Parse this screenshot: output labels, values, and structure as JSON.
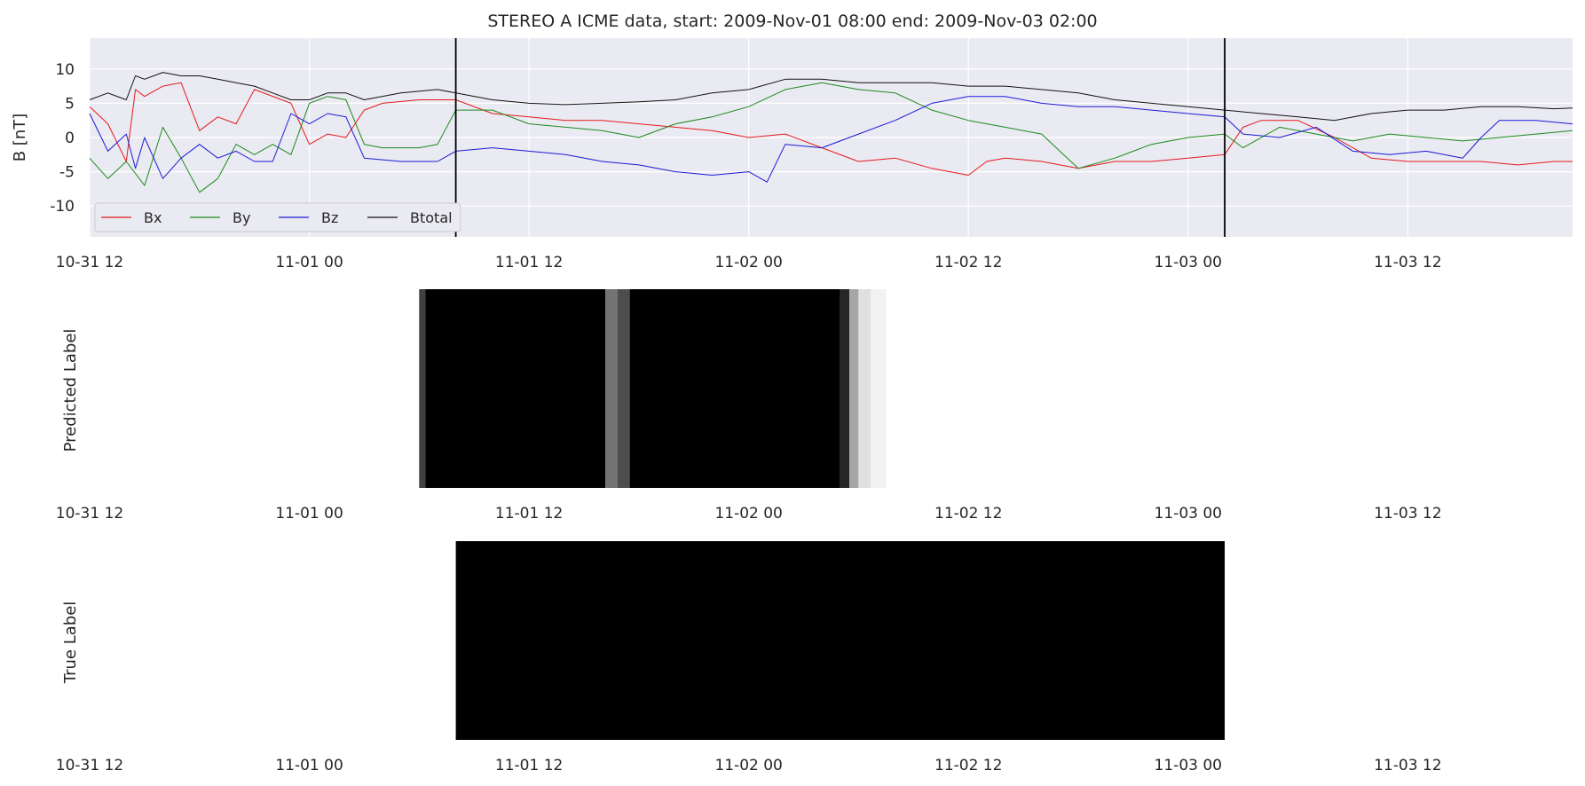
{
  "chart_data": [
    {
      "type": "line",
      "title": "STEREO A ICME data, start: 2009-Nov-01 08:00  end: 2009-Nov-03 02:00",
      "ylabel": "B [nT]",
      "xlabel": "",
      "x_range": [
        "2009-10-31 12:00",
        "2009-11-03 21:00"
      ],
      "ylim": [
        -14.5,
        14.5
      ],
      "y_ticks": [
        -10,
        -5,
        0,
        5,
        10
      ],
      "x_ticks": [
        "10-31 12",
        "11-01 00",
        "11-01 12",
        "11-02 00",
        "11-02 12",
        "11-03 00",
        "11-03 12"
      ],
      "grid": true,
      "legend_position": "lower-left",
      "event_lines": [
        "2009-11-01 08:00",
        "2009-11-03 02:00"
      ],
      "series": [
        {
          "name": "Bx",
          "color": "#e41a1c",
          "points": [
            [
              "2009-10-31 12:00",
              4.5
            ],
            [
              "2009-10-31 13:00",
              2.0
            ],
            [
              "2009-10-31 14:00",
              -3.5
            ],
            [
              "2009-10-31 14:30",
              7.0
            ],
            [
              "2009-10-31 15:00",
              6.0
            ],
            [
              "2009-10-31 16:00",
              7.5
            ],
            [
              "2009-10-31 17:00",
              8.0
            ],
            [
              "2009-10-31 18:00",
              1.0
            ],
            [
              "2009-10-31 19:00",
              3.0
            ],
            [
              "2009-10-31 20:00",
              2.0
            ],
            [
              "2009-10-31 21:00",
              7.0
            ],
            [
              "2009-10-31 23:00",
              5.0
            ],
            [
              "2009-11-01 00:00",
              -1.0
            ],
            [
              "2009-11-01 01:00",
              0.5
            ],
            [
              "2009-11-01 02:00",
              0.0
            ],
            [
              "2009-11-01 03:00",
              4.0
            ],
            [
              "2009-11-01 04:00",
              5.0
            ],
            [
              "2009-11-01 06:00",
              5.5
            ],
            [
              "2009-11-01 08:00",
              5.5
            ],
            [
              "2009-11-01 10:00",
              3.5
            ],
            [
              "2009-11-01 12:00",
              3.0
            ],
            [
              "2009-11-01 14:00",
              2.5
            ],
            [
              "2009-11-01 16:00",
              2.5
            ],
            [
              "2009-11-01 18:00",
              2.0
            ],
            [
              "2009-11-01 20:00",
              1.5
            ],
            [
              "2009-11-01 22:00",
              1.0
            ],
            [
              "2009-11-02 00:00",
              0.0
            ],
            [
              "2009-11-02 02:00",
              0.5
            ],
            [
              "2009-11-02 04:00",
              -1.5
            ],
            [
              "2009-11-02 06:00",
              -3.5
            ],
            [
              "2009-11-02 08:00",
              -3.0
            ],
            [
              "2009-11-02 10:00",
              -4.5
            ],
            [
              "2009-11-02 12:00",
              -5.5
            ],
            [
              "2009-11-02 13:00",
              -3.5
            ],
            [
              "2009-11-02 14:00",
              -3.0
            ],
            [
              "2009-11-02 16:00",
              -3.5
            ],
            [
              "2009-11-02 18:00",
              -4.5
            ],
            [
              "2009-11-02 20:00",
              -3.5
            ],
            [
              "2009-11-02 22:00",
              -3.5
            ],
            [
              "2009-11-03 00:00",
              -3.0
            ],
            [
              "2009-11-03 02:00",
              -2.5
            ],
            [
              "2009-11-03 03:00",
              1.5
            ],
            [
              "2009-11-03 04:00",
              2.5
            ],
            [
              "2009-11-03 06:00",
              2.5
            ],
            [
              "2009-11-03 08:00",
              0.0
            ],
            [
              "2009-11-03 10:00",
              -3.0
            ],
            [
              "2009-11-03 12:00",
              -3.5
            ],
            [
              "2009-11-03 14:00",
              -3.5
            ],
            [
              "2009-11-03 16:00",
              -3.5
            ],
            [
              "2009-11-03 18:00",
              -4.0
            ],
            [
              "2009-11-03 20:00",
              -3.5
            ],
            [
              "2009-11-03 21:00",
              -3.5
            ]
          ]
        },
        {
          "name": "By",
          "color": "#1b8a1b",
          "points": [
            [
              "2009-10-31 12:00",
              -3.0
            ],
            [
              "2009-10-31 13:00",
              -6.0
            ],
            [
              "2009-10-31 14:00",
              -3.5
            ],
            [
              "2009-10-31 15:00",
              -7.0
            ],
            [
              "2009-10-31 16:00",
              1.5
            ],
            [
              "2009-10-31 17:00",
              -3.0
            ],
            [
              "2009-10-31 18:00",
              -8.0
            ],
            [
              "2009-10-31 19:00",
              -6.0
            ],
            [
              "2009-10-31 20:00",
              -1.0
            ],
            [
              "2009-10-31 21:00",
              -2.5
            ],
            [
              "2009-10-31 22:00",
              -1.0
            ],
            [
              "2009-10-31 23:00",
              -2.5
            ],
            [
              "2009-11-01 00:00",
              5.0
            ],
            [
              "2009-11-01 01:00",
              6.0
            ],
            [
              "2009-11-01 02:00",
              5.5
            ],
            [
              "2009-11-01 03:00",
              -1.0
            ],
            [
              "2009-11-01 04:00",
              -1.5
            ],
            [
              "2009-11-01 06:00",
              -1.5
            ],
            [
              "2009-11-01 07:00",
              -1.0
            ],
            [
              "2009-11-01 08:00",
              4.0
            ],
            [
              "2009-11-01 10:00",
              4.0
            ],
            [
              "2009-11-01 12:00",
              2.0
            ],
            [
              "2009-11-01 14:00",
              1.5
            ],
            [
              "2009-11-01 16:00",
              1.0
            ],
            [
              "2009-11-01 18:00",
              0.0
            ],
            [
              "2009-11-01 20:00",
              2.0
            ],
            [
              "2009-11-01 22:00",
              3.0
            ],
            [
              "2009-11-02 00:00",
              4.5
            ],
            [
              "2009-11-02 02:00",
              7.0
            ],
            [
              "2009-11-02 04:00",
              8.0
            ],
            [
              "2009-11-02 06:00",
              7.0
            ],
            [
              "2009-11-02 08:00",
              6.5
            ],
            [
              "2009-11-02 10:00",
              4.0
            ],
            [
              "2009-11-02 12:00",
              2.5
            ],
            [
              "2009-11-02 14:00",
              1.5
            ],
            [
              "2009-11-02 16:00",
              0.5
            ],
            [
              "2009-11-02 18:00",
              -4.5
            ],
            [
              "2009-11-02 20:00",
              -3.0
            ],
            [
              "2009-11-02 22:00",
              -1.0
            ],
            [
              "2009-11-03 00:00",
              0.0
            ],
            [
              "2009-11-03 02:00",
              0.5
            ],
            [
              "2009-11-03 03:00",
              -1.5
            ],
            [
              "2009-11-03 05:00",
              1.5
            ],
            [
              "2009-11-03 07:00",
              0.5
            ],
            [
              "2009-11-03 09:00",
              -0.5
            ],
            [
              "2009-11-03 11:00",
              0.5
            ],
            [
              "2009-11-03 13:00",
              0.0
            ],
            [
              "2009-11-03 15:00",
              -0.5
            ],
            [
              "2009-11-03 17:00",
              0.0
            ],
            [
              "2009-11-03 19:00",
              0.5
            ],
            [
              "2009-11-03 21:00",
              1.0
            ]
          ]
        },
        {
          "name": "Bz",
          "color": "#1a1ad6",
          "points": [
            [
              "2009-10-31 12:00",
              3.5
            ],
            [
              "2009-10-31 13:00",
              -2.0
            ],
            [
              "2009-10-31 14:00",
              0.5
            ],
            [
              "2009-10-31 14:30",
              -4.5
            ],
            [
              "2009-10-31 15:00",
              0.0
            ],
            [
              "2009-10-31 16:00",
              -6.0
            ],
            [
              "2009-10-31 17:00",
              -3.0
            ],
            [
              "2009-10-31 18:00",
              -1.0
            ],
            [
              "2009-10-31 19:00",
              -3.0
            ],
            [
              "2009-10-31 20:00",
              -2.0
            ],
            [
              "2009-10-31 21:00",
              -3.5
            ],
            [
              "2009-10-31 22:00",
              -3.5
            ],
            [
              "2009-10-31 23:00",
              3.5
            ],
            [
              "2009-11-01 00:00",
              2.0
            ],
            [
              "2009-11-01 01:00",
              3.5
            ],
            [
              "2009-11-01 02:00",
              3.0
            ],
            [
              "2009-11-01 03:00",
              -3.0
            ],
            [
              "2009-11-01 05:00",
              -3.5
            ],
            [
              "2009-11-01 07:00",
              -3.5
            ],
            [
              "2009-11-01 08:00",
              -2.0
            ],
            [
              "2009-11-01 10:00",
              -1.5
            ],
            [
              "2009-11-01 12:00",
              -2.0
            ],
            [
              "2009-11-01 14:00",
              -2.5
            ],
            [
              "2009-11-01 16:00",
              -3.5
            ],
            [
              "2009-11-01 18:00",
              -4.0
            ],
            [
              "2009-11-01 20:00",
              -5.0
            ],
            [
              "2009-11-01 22:00",
              -5.5
            ],
            [
              "2009-11-02 00:00",
              -5.0
            ],
            [
              "2009-11-02 01:00",
              -6.5
            ],
            [
              "2009-11-02 02:00",
              -1.0
            ],
            [
              "2009-11-02 04:00",
              -1.5
            ],
            [
              "2009-11-02 06:00",
              0.5
            ],
            [
              "2009-11-02 08:00",
              2.5
            ],
            [
              "2009-11-02 10:00",
              5.0
            ],
            [
              "2009-11-02 12:00",
              6.0
            ],
            [
              "2009-11-02 14:00",
              6.0
            ],
            [
              "2009-11-02 16:00",
              5.0
            ],
            [
              "2009-11-02 18:00",
              4.5
            ],
            [
              "2009-11-02 20:00",
              4.5
            ],
            [
              "2009-11-02 22:00",
              4.0
            ],
            [
              "2009-11-03 00:00",
              3.5
            ],
            [
              "2009-11-03 02:00",
              3.0
            ],
            [
              "2009-11-03 03:00",
              0.5
            ],
            [
              "2009-11-03 05:00",
              0.0
            ],
            [
              "2009-11-03 07:00",
              1.5
            ],
            [
              "2009-11-03 09:00",
              -2.0
            ],
            [
              "2009-11-03 11:00",
              -2.5
            ],
            [
              "2009-11-03 13:00",
              -2.0
            ],
            [
              "2009-11-03 15:00",
              -3.0
            ],
            [
              "2009-11-03 16:00",
              0.0
            ],
            [
              "2009-11-03 17:00",
              2.5
            ],
            [
              "2009-11-03 19:00",
              2.5
            ],
            [
              "2009-11-03 21:00",
              2.0
            ]
          ]
        },
        {
          "name": "Btotal",
          "color": "#111111",
          "points": [
            [
              "2009-10-31 12:00",
              5.5
            ],
            [
              "2009-10-31 13:00",
              6.5
            ],
            [
              "2009-10-31 14:00",
              5.5
            ],
            [
              "2009-10-31 14:30",
              9.0
            ],
            [
              "2009-10-31 15:00",
              8.5
            ],
            [
              "2009-10-31 16:00",
              9.5
            ],
            [
              "2009-10-31 17:00",
              9.0
            ],
            [
              "2009-10-31 18:00",
              9.0
            ],
            [
              "2009-10-31 19:00",
              8.5
            ],
            [
              "2009-10-31 20:00",
              8.0
            ],
            [
              "2009-10-31 21:00",
              7.5
            ],
            [
              "2009-10-31 22:00",
              6.5
            ],
            [
              "2009-10-31 23:00",
              5.5
            ],
            [
              "2009-11-01 00:00",
              5.5
            ],
            [
              "2009-11-01 01:00",
              6.5
            ],
            [
              "2009-11-01 02:00",
              6.5
            ],
            [
              "2009-11-01 03:00",
              5.5
            ],
            [
              "2009-11-01 05:00",
              6.5
            ],
            [
              "2009-11-01 07:00",
              7.0
            ],
            [
              "2009-11-01 08:00",
              6.5
            ],
            [
              "2009-11-01 10:00",
              5.5
            ],
            [
              "2009-11-01 12:00",
              5.0
            ],
            [
              "2009-11-01 14:00",
              4.8
            ],
            [
              "2009-11-01 16:00",
              5.0
            ],
            [
              "2009-11-01 18:00",
              5.2
            ],
            [
              "2009-11-01 20:00",
              5.5
            ],
            [
              "2009-11-01 22:00",
              6.5
            ],
            [
              "2009-11-02 00:00",
              7.0
            ],
            [
              "2009-11-02 02:00",
              8.5
            ],
            [
              "2009-11-02 04:00",
              8.5
            ],
            [
              "2009-11-02 06:00",
              8.0
            ],
            [
              "2009-11-02 08:00",
              8.0
            ],
            [
              "2009-11-02 10:00",
              8.0
            ],
            [
              "2009-11-02 12:00",
              7.5
            ],
            [
              "2009-11-02 14:00",
              7.5
            ],
            [
              "2009-11-02 16:00",
              7.0
            ],
            [
              "2009-11-02 18:00",
              6.5
            ],
            [
              "2009-11-02 20:00",
              5.5
            ],
            [
              "2009-11-02 22:00",
              5.0
            ],
            [
              "2009-11-03 00:00",
              4.5
            ],
            [
              "2009-11-03 02:00",
              4.0
            ],
            [
              "2009-11-03 04:00",
              3.5
            ],
            [
              "2009-11-03 06:00",
              3.0
            ],
            [
              "2009-11-03 08:00",
              2.5
            ],
            [
              "2009-11-03 10:00",
              3.5
            ],
            [
              "2009-11-03 12:00",
              4.0
            ],
            [
              "2009-11-03 14:00",
              4.0
            ],
            [
              "2009-11-03 16:00",
              4.5
            ],
            [
              "2009-11-03 18:00",
              4.5
            ],
            [
              "2009-11-03 20:00",
              4.2
            ],
            [
              "2009-11-03 21:00",
              4.3
            ]
          ]
        }
      ]
    },
    {
      "type": "heatmap",
      "ylabel": "Predicted Label",
      "x_range": [
        "2009-10-31 12:00",
        "2009-11-03 21:00"
      ],
      "x_ticks": [
        "10-31 12",
        "11-01 00",
        "11-01 12",
        "11-02 00",
        "11-02 12",
        "11-03 00",
        "11-03 12"
      ],
      "colormap": "grey (1 = black, 0 = white)",
      "segments": [
        [
          "2009-11-01 06:00",
          "2009-11-01 06:20",
          0.75
        ],
        [
          "2009-11-01 06:20",
          "2009-11-01 16:10",
          1.0
        ],
        [
          "2009-11-01 16:10",
          "2009-11-01 16:50",
          0.55
        ],
        [
          "2009-11-01 16:50",
          "2009-11-01 17:30",
          0.7
        ],
        [
          "2009-11-01 17:30",
          "2009-11-02 05:00",
          1.0
        ],
        [
          "2009-11-02 05:00",
          "2009-11-02 05:30",
          0.85
        ],
        [
          "2009-11-02 05:30",
          "2009-11-02 06:00",
          0.35
        ],
        [
          "2009-11-02 06:00",
          "2009-11-02 06:40",
          0.12
        ],
        [
          "2009-11-02 06:40",
          "2009-11-02 07:30",
          0.05
        ]
      ]
    },
    {
      "type": "heatmap",
      "ylabel": "True Label",
      "x_range": [
        "2009-10-31 12:00",
        "2009-11-03 21:00"
      ],
      "x_ticks": [
        "10-31 12",
        "11-01 00",
        "11-01 12",
        "11-02 00",
        "11-02 12",
        "11-03 00",
        "11-03 12"
      ],
      "colormap": "grey (1 = black, 0 = white)",
      "segments": [
        [
          "2009-11-01 08:00",
          "2009-11-03 02:00",
          1.0
        ]
      ]
    }
  ]
}
